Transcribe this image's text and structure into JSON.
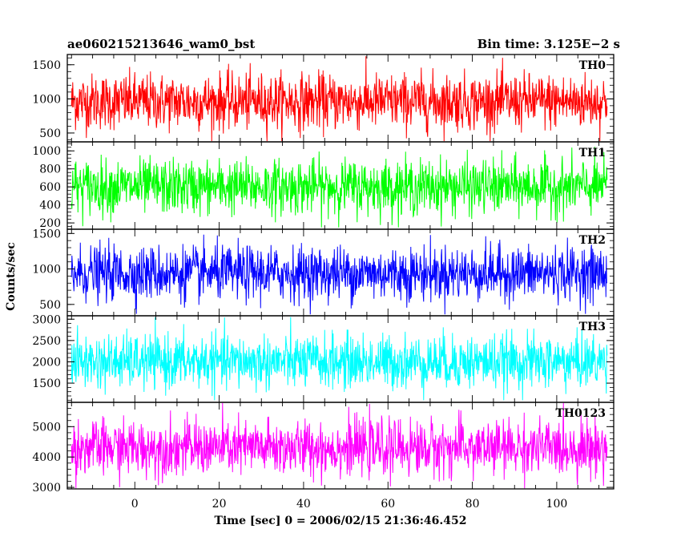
{
  "header": {
    "title": "ae060215213646_wam0_bst",
    "bin_time": "Bin time: 3.125E−2 s"
  },
  "chart_data": {
    "type": "line",
    "xlabel": "Time [sec] 0 = 2006/02/15 21:36:46.452",
    "ylabel": "Counts/sec",
    "xlim": [
      -16,
      113.5
    ],
    "x_range_data": [
      -15,
      112
    ],
    "xticks": [
      0,
      20,
      40,
      60,
      80,
      100
    ],
    "x_tick_labels": [
      "0",
      "20",
      "40",
      "60",
      "80",
      "100"
    ],
    "bin_time_s": 0.03125,
    "grid": false,
    "series": [
      {
        "name": "TH0",
        "color": "#ff0000",
        "ylim": [
          370,
          1650
        ],
        "yticks": [
          500,
          1000,
          1500
        ],
        "y_tick_labels": [
          "500",
          "1000",
          "1500"
        ],
        "mean": 960,
        "min": 380,
        "max": 1640
      },
      {
        "name": "TH1",
        "color": "#00ff00",
        "ylim": [
          130,
          1100
        ],
        "yticks": [
          200,
          400,
          600,
          800,
          1000
        ],
        "y_tick_labels": [
          "200",
          "400",
          "600",
          "800",
          "1000"
        ],
        "mean": 600,
        "min": 150,
        "max": 1080
      },
      {
        "name": "TH2",
        "color": "#0000ff",
        "ylim": [
          340,
          1560
        ],
        "yticks": [
          500,
          1000,
          1500
        ],
        "y_tick_labels": [
          "500",
          "1000",
          "1500"
        ],
        "mean": 940,
        "min": 360,
        "max": 1540
      },
      {
        "name": "TH3",
        "color": "#00ffff",
        "ylim": [
          1050,
          3080
        ],
        "yticks": [
          1500,
          2000,
          2500,
          3000
        ],
        "y_tick_labels": [
          "1500",
          "2000",
          "2500",
          "3000"
        ],
        "mean": 2000,
        "min": 1100,
        "max": 3050
      },
      {
        "name": "TH0123",
        "color": "#ff00ff",
        "ylim": [
          2950,
          5800
        ],
        "yticks": [
          3000,
          4000,
          5000
        ],
        "y_tick_labels": [
          "3000",
          "4000",
          "5000"
        ],
        "mean": 4300,
        "min": 2970,
        "max": 5780
      }
    ]
  }
}
